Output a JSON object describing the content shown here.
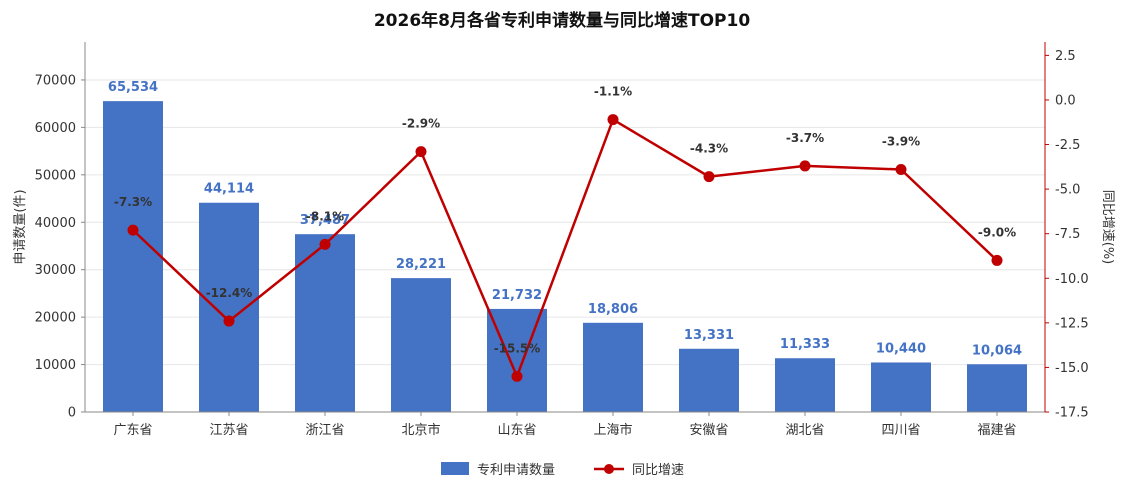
{
  "chart_data": {
    "type": "bar",
    "title": "2026年8月各省专利申请数量与同比增速TOP10",
    "categories": [
      "广东省",
      "江苏省",
      "浙江省",
      "北京市",
      "山东省",
      "上海市",
      "安徽省",
      "湖北省",
      "四川省",
      "福建省"
    ],
    "series": [
      {
        "name": "专利申请数量",
        "type": "bar",
        "axis": "left",
        "values": [
          65534,
          44114,
          37487,
          28221,
          21732,
          18806,
          13331,
          11333,
          10440,
          10064
        ],
        "labels": [
          "65,534",
          "44,114",
          "37,487",
          "28,221",
          "21,732",
          "18,806",
          "13,331",
          "11,333",
          "10,440",
          "10,064"
        ],
        "color": "#4472C4"
      },
      {
        "name": "同比增速",
        "type": "line",
        "axis": "right",
        "values": [
          -7.3,
          -12.4,
          -8.1,
          -2.9,
          -15.5,
          -1.1,
          -4.3,
          -3.7,
          -3.9,
          -9.0
        ],
        "labels": [
          "-7.3%",
          "-12.4%",
          "-8.1%",
          "-2.9%",
          "-15.5%",
          "-1.1%",
          "-4.3%",
          "-3.7%",
          "-3.9%",
          "-9.0%"
        ],
        "color": "#C00000"
      }
    ],
    "ylabel": "申请数量(件)",
    "y2label": "同比增速(%)",
    "ylim": [
      0,
      78000
    ],
    "yticks": [
      0,
      10000,
      20000,
      30000,
      40000,
      50000,
      60000,
      70000
    ],
    "y2lim": [
      -17.5,
      3.25
    ],
    "y2ticks": [
      {
        "v": 2.5,
        "t": "2.5"
      },
      {
        "v": 0,
        "t": "0.0"
      },
      {
        "v": -2.5,
        "t": "-2.5"
      },
      {
        "v": -5,
        "t": "-5.0"
      },
      {
        "v": -7.5,
        "t": "-7.5"
      },
      {
        "v": -10,
        "t": "-10.0"
      },
      {
        "v": -12.5,
        "t": "-12.5"
      },
      {
        "v": -15,
        "t": "-15.0"
      },
      {
        "v": -17.5,
        "t": "-17.5"
      }
    ],
    "grid": true,
    "legend": "bottom"
  }
}
